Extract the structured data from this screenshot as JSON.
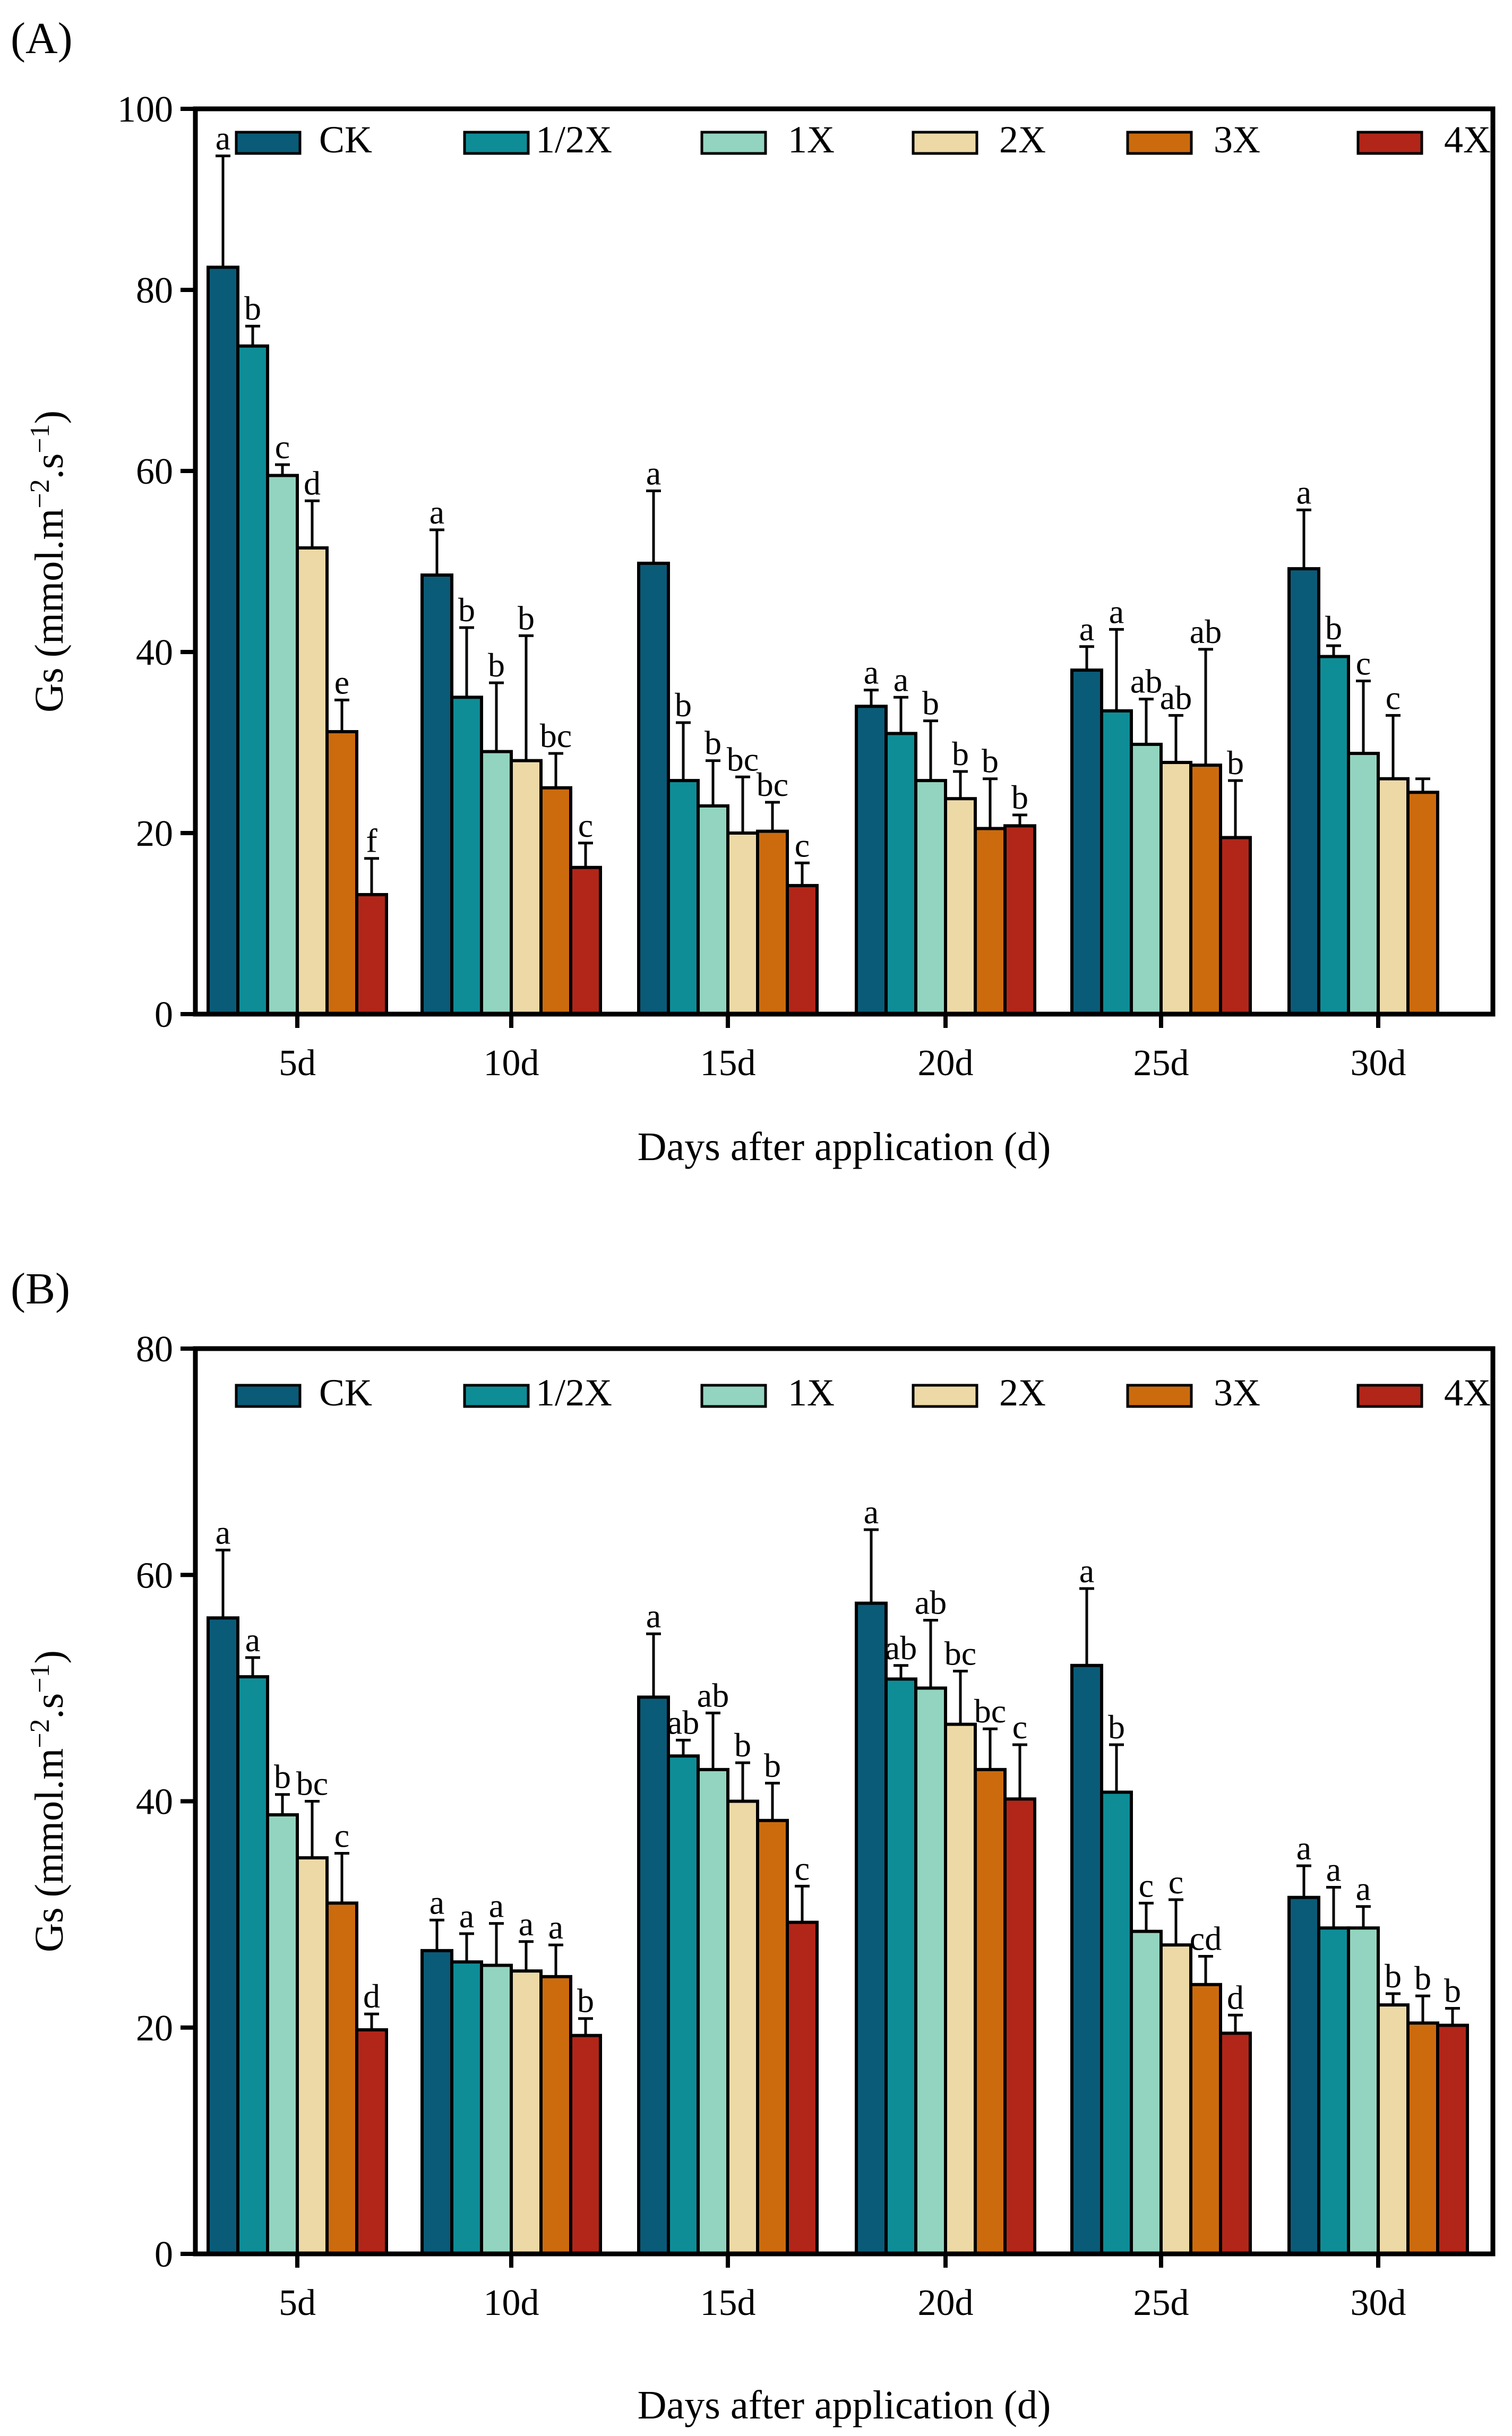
{
  "chart_data": [
    {
      "type": "bar",
      "panel_label": "(A)",
      "ylabel": "Gs (mmol.m",
      "ylabel_sup1": "−2",
      "ylabel_mid": ".s",
      "ylabel_sup2": "−1",
      "ylabel_end": ")",
      "xlabel": "Days after application (d)",
      "ylim": [
        0,
        100
      ],
      "yticks": [
        "0",
        "20",
        "40",
        "60",
        "80",
        "100"
      ],
      "categories": [
        "5d",
        "10d",
        "15d",
        "20d",
        "25d",
        "30d"
      ],
      "legend_position": "top",
      "series": [
        {
          "name": "CK",
          "color": "#0a5b78",
          "values": [
            82.5,
            48.5,
            49.8,
            34.0,
            38.0,
            49.2
          ],
          "errors": [
            12.3,
            5.0,
            8.0,
            1.8,
            2.6,
            6.5
          ],
          "letters": [
            "a",
            "a",
            "a",
            "a",
            "a",
            "a"
          ]
        },
        {
          "name": "1/2X",
          "color": "#0e8d97",
          "values": [
            73.8,
            35.0,
            25.8,
            31.0,
            33.5,
            39.5
          ],
          "errors": [
            2.2,
            7.7,
            6.4,
            4.0,
            9.0,
            1.2
          ],
          "letters": [
            "b",
            "b",
            "b",
            "a",
            "a",
            "b"
          ]
        },
        {
          "name": "1X",
          "color": "#92d4bf",
          "values": [
            59.5,
            29.0,
            23.0,
            25.8,
            29.8,
            28.8
          ],
          "errors": [
            1.2,
            7.6,
            5.0,
            6.6,
            5.0,
            8.0
          ],
          "letters": [
            "c",
            "b",
            "b",
            "b",
            "ab",
            "c"
          ]
        },
        {
          "name": "2X",
          "color": "#ecd9a6",
          "values": [
            51.5,
            28.0,
            20.0,
            23.8,
            27.8,
            26.0
          ],
          "errors": [
            5.2,
            13.8,
            6.2,
            3.0,
            5.2,
            7.0
          ],
          "letters": [
            "d",
            "b",
            "bc",
            "b",
            "ab",
            "c"
          ]
        },
        {
          "name": "3X",
          "color": "#cc6b0e",
          "values": [
            31.2,
            25.0,
            20.2,
            20.5,
            27.5,
            24.5
          ],
          "errors": [
            3.5,
            3.8,
            3.2,
            5.5,
            12.8,
            1.5
          ],
          "letters": [
            "e",
            "bc",
            "bc",
            "b",
            "ab",
            null
          ]
        },
        {
          "name": "4X",
          "color": "#b12619",
          "values": [
            13.2,
            16.2,
            14.2,
            20.8,
            19.5,
            null
          ],
          "errors": [
            4.0,
            2.7,
            2.5,
            1.2,
            6.3,
            null
          ],
          "letters": [
            "f",
            "c",
            "c",
            "b",
            "b",
            null
          ]
        }
      ]
    },
    {
      "type": "bar",
      "panel_label": "(B)",
      "ylabel": "Gs (mmol.m",
      "ylabel_sup1": "−2",
      "ylabel_mid": ".s",
      "ylabel_sup2": "−1",
      "ylabel_end": ")",
      "xlabel": "Days after application (d)",
      "ylim": [
        0,
        80
      ],
      "yticks": [
        "0",
        "20",
        "40",
        "60",
        "80"
      ],
      "categories": [
        "5d",
        "10d",
        "15d",
        "20d",
        "25d",
        "30d"
      ],
      "legend_position": "top",
      "series": [
        {
          "name": "CK",
          "color": "#0a5b78",
          "values": [
            56.2,
            26.8,
            49.2,
            57.5,
            52.0,
            31.5
          ],
          "errors": [
            6.0,
            2.7,
            5.6,
            6.5,
            6.8,
            2.8
          ],
          "letters": [
            "a",
            "a",
            "a",
            "a",
            "a",
            "a"
          ]
        },
        {
          "name": "1/2X",
          "color": "#0e8d97",
          "values": [
            51.0,
            25.8,
            44.0,
            50.8,
            40.8,
            28.8
          ],
          "errors": [
            1.7,
            2.5,
            1.4,
            1.2,
            4.2,
            3.6
          ],
          "letters": [
            "a",
            "a",
            "ab",
            "ab",
            "b",
            "a"
          ]
        },
        {
          "name": "1X",
          "color": "#92d4bf",
          "values": [
            38.8,
            25.5,
            42.8,
            50.0,
            28.5,
            28.8
          ],
          "errors": [
            1.8,
            3.7,
            5.0,
            6.0,
            2.5,
            1.9
          ],
          "letters": [
            "b",
            "a",
            "ab",
            "ab",
            "c",
            "a"
          ]
        },
        {
          "name": "2X",
          "color": "#ecd9a6",
          "values": [
            35.0,
            25.0,
            40.0,
            46.8,
            27.3,
            22.0
          ],
          "errors": [
            5.0,
            2.6,
            3.4,
            4.7,
            4.0,
            1.0
          ],
          "letters": [
            "bc",
            "a",
            "b",
            "bc",
            "c",
            "b"
          ]
        },
        {
          "name": "3X",
          "color": "#cc6b0e",
          "values": [
            31.0,
            24.5,
            38.3,
            42.8,
            23.8,
            20.4
          ],
          "errors": [
            4.4,
            2.8,
            3.3,
            3.6,
            2.5,
            2.4
          ],
          "letters": [
            "c",
            "a",
            "b",
            "bc",
            "cd",
            "b"
          ]
        },
        {
          "name": "4X",
          "color": "#b12619",
          "values": [
            19.8,
            19.3,
            29.3,
            40.2,
            19.5,
            20.2
          ],
          "errors": [
            1.4,
            1.5,
            3.2,
            4.8,
            1.6,
            1.5
          ],
          "letters": [
            "d",
            "b",
            "c",
            "c",
            "d",
            "b"
          ]
        }
      ]
    }
  ]
}
